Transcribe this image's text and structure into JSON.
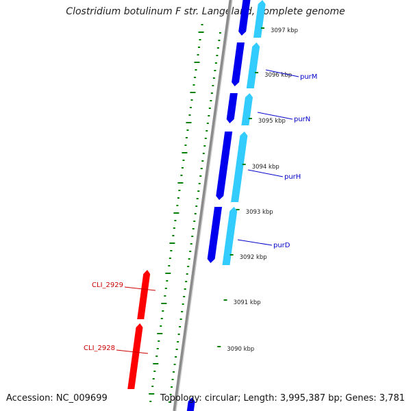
{
  "title": "Clostridium botulinum F str. Langeland, complete genome",
  "accession": "Accession: NC_009699",
  "topology": "Topology: circular; Length: 3,995,387 bp; Genes: 3,781",
  "colors": {
    "backbone": "#8c8c8c",
    "forward_cds": "#0000ee",
    "forward_cds_light": "#33ccff",
    "reverse_cds": "#ff0000",
    "gc_ticks": "#008000",
    "forward_label": "#0000cc",
    "reverse_label": "#cc0000"
  },
  "kbp_ticks": [
    {
      "label": "3097 kbp",
      "value": 3097
    },
    {
      "label": "3096 kbp",
      "value": 3096
    },
    {
      "label": "3095 kbp",
      "value": 3095
    },
    {
      "label": "3094 kbp",
      "value": 3094
    },
    {
      "label": "3093 kbp",
      "value": 3093
    },
    {
      "label": "3092 kbp",
      "value": 3092
    },
    {
      "label": "3091 kbp",
      "value": 3091
    },
    {
      "label": "3090 kbp",
      "value": 3090
    }
  ],
  "forward_genes": [
    {
      "label": "purM"
    },
    {
      "label": "purN"
    },
    {
      "label": "purH"
    },
    {
      "label": "purD"
    }
  ],
  "reverse_genes": [
    {
      "label": "CLI_2929"
    },
    {
      "label": "CLI_2928"
    }
  ]
}
